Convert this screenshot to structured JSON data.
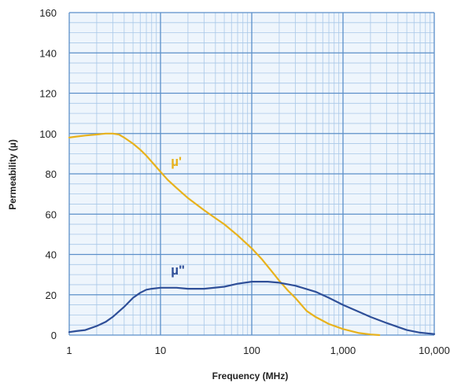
{
  "chart_data": {
    "type": "line",
    "title": "",
    "xlabel": "Frequency (MHz)",
    "ylabel": "Permeability (µ)",
    "x_scale": "log",
    "xlim": [
      1,
      10000
    ],
    "ylim": [
      0,
      160
    ],
    "x_ticks": [
      1,
      10,
      100,
      1000,
      10000
    ],
    "x_tick_labels": [
      "1",
      "10",
      "100",
      "1,000",
      "10,000"
    ],
    "y_ticks": [
      0,
      20,
      40,
      60,
      80,
      100,
      120,
      140,
      160
    ],
    "y_tick_labels": [
      "0",
      "20",
      "40",
      "60",
      "80",
      "100",
      "120",
      "140",
      "160"
    ],
    "grid": true,
    "colors": {
      "grid_major": "#5b8fc9",
      "grid_minor": "#a9c8e8",
      "plot_background": "#eef5fc"
    },
    "series": [
      {
        "name": "µ'",
        "color": "#e8b21c",
        "x": [
          1,
          1.2,
          1.5,
          2,
          2.5,
          3,
          3.5,
          4,
          5,
          6,
          7,
          8,
          10,
          12,
          15,
          20,
          30,
          40,
          50,
          70,
          100,
          130,
          170,
          200,
          250,
          300,
          400,
          500,
          700,
          1000,
          1500,
          2000,
          2500
        ],
        "y": [
          98,
          98.5,
          99,
          99.5,
          100,
          100,
          99.5,
          98,
          95,
          92,
          89,
          86,
          81,
          77,
          73,
          68,
          62,
          58,
          55,
          49.5,
          43,
          37.5,
          31,
          27,
          22,
          18.5,
          12,
          9,
          5.5,
          3,
          1,
          0.3,
          0
        ]
      },
      {
        "name": "µ\"",
        "color": "#2f4f98",
        "x": [
          1,
          1.2,
          1.5,
          2,
          2.5,
          3,
          4,
          5,
          6,
          7,
          8,
          10,
          15,
          20,
          30,
          50,
          70,
          100,
          150,
          200,
          300,
          500,
          700,
          1000,
          1500,
          2000,
          3000,
          5000,
          7000,
          10000
        ],
        "y": [
          1.5,
          2,
          2.5,
          4.5,
          6.5,
          9,
          14,
          18.5,
          21,
          22.5,
          23,
          23.5,
          23.5,
          23,
          23,
          24,
          25.5,
          26.5,
          26.5,
          26,
          24.5,
          21.5,
          18.5,
          15,
          11.5,
          9,
          6,
          2.5,
          1.2,
          0.5
        ]
      }
    ],
    "annotations": [
      {
        "text": "µ'",
        "x": 13,
        "y": 84,
        "color": "#e8b21c"
      },
      {
        "text": "µ\"",
        "x": 13,
        "y": 30,
        "color": "#2f4f98"
      }
    ]
  }
}
